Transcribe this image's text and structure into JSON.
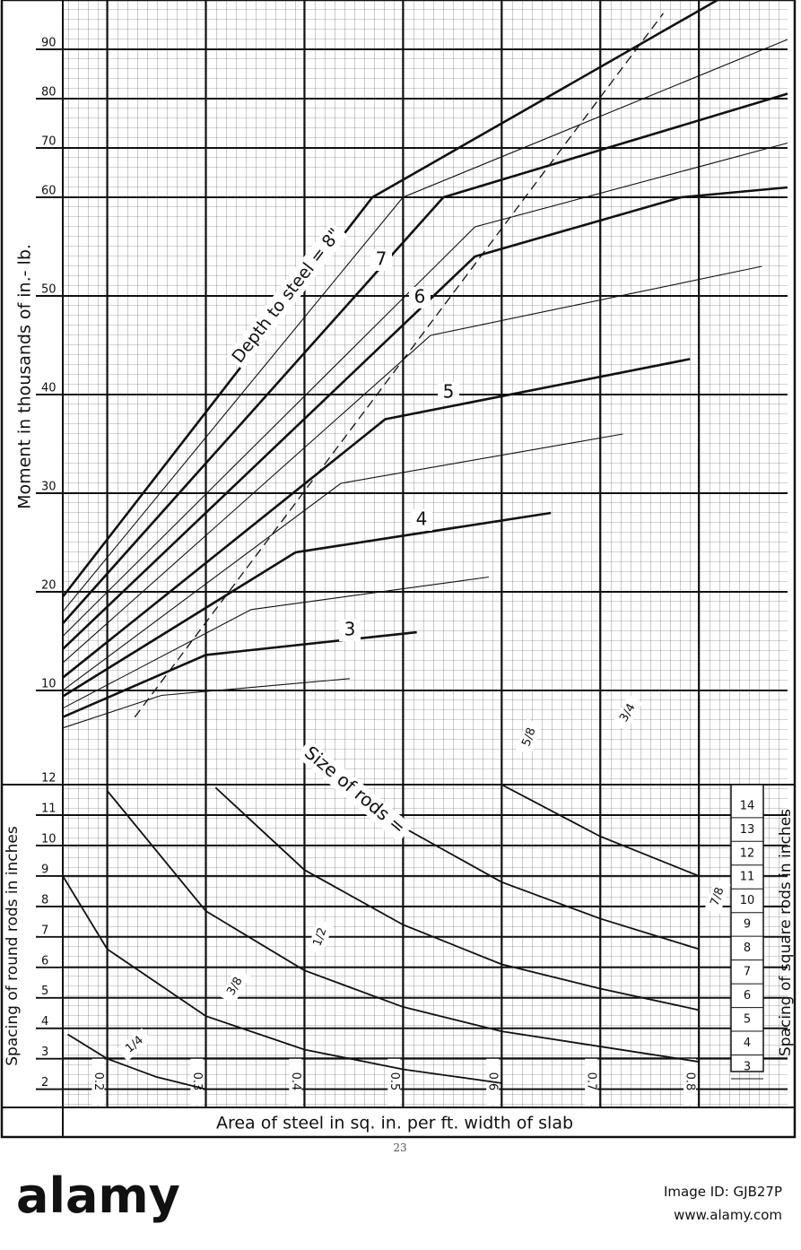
{
  "page_number": "23",
  "x_axis_label": "Area of steel in sq. in. per ft. width of slab",
  "watermark": {
    "brand": "alamy",
    "image_id": "Image ID: GJB27P",
    "url": "www.alamy.com"
  },
  "chart_data": [
    {
      "type": "line",
      "y_label": "Moment in thousands of in.- lb.",
      "xlim": [
        0.155,
        0.89
      ],
      "xticks": [
        0.2,
        0.3,
        0.4,
        0.5,
        0.6,
        0.7,
        0.8
      ],
      "ylim": [
        0.9,
        100
      ],
      "yticks": [
        10,
        20,
        30,
        40,
        50,
        60,
        70,
        80,
        90
      ],
      "grid": true,
      "series": [
        {
          "name": "Depth to steel = 8\"",
          "style": "bold",
          "color": "#111",
          "x": [
            0.155,
            0.469,
            0.819
          ],
          "values": [
            19.5,
            60,
            100
          ]
        },
        {
          "style": "thin",
          "color": "#111",
          "x": [
            0.155,
            0.5,
            0.89
          ],
          "values": [
            18,
            60,
            92
          ]
        },
        {
          "name": "7",
          "style": "bold",
          "color": "#111",
          "x": [
            0.155,
            0.541,
            0.89
          ],
          "values": [
            16.8,
            60,
            81
          ]
        },
        {
          "style": "thin",
          "color": "#111",
          "x": [
            0.155,
            0.573,
            0.89
          ],
          "values": [
            15.5,
            57,
            71
          ]
        },
        {
          "name": "6",
          "style": "bold",
          "color": "#111",
          "x": [
            0.155,
            0.573,
            0.782,
            0.89
          ],
          "values": [
            14.2,
            54,
            60,
            62
          ]
        },
        {
          "style": "thin",
          "color": "#111",
          "x": [
            0.155,
            0.528,
            0.864
          ],
          "values": [
            12.8,
            46,
            53
          ]
        },
        {
          "name": "5",
          "style": "bold",
          "color": "#111",
          "x": [
            0.155,
            0.482,
            0.791
          ],
          "values": [
            11.3,
            37.5,
            43.6
          ]
        },
        {
          "style": "thin",
          "color": "#111",
          "x": [
            0.155,
            0.437,
            0.723
          ],
          "values": [
            10,
            31,
            36
          ]
        },
        {
          "name": "4",
          "style": "bold",
          "color": "#111",
          "x": [
            0.155,
            0.391,
            0.65
          ],
          "values": [
            9.4,
            24,
            28
          ]
        },
        {
          "style": "thin",
          "color": "#111",
          "x": [
            0.155,
            0.346,
            0.587
          ],
          "values": [
            8.2,
            18.2,
            21.5
          ]
        },
        {
          "name": "3",
          "style": "bold",
          "color": "#111",
          "x": [
            0.155,
            0.3,
            0.514
          ],
          "values": [
            7.3,
            13.6,
            15.9
          ]
        },
        {
          "style": "thin",
          "color": "#111",
          "x": [
            0.155,
            0.255,
            0.446
          ],
          "values": [
            6.2,
            9.5,
            11.2
          ]
        },
        {
          "style": "dashed",
          "color": "#111",
          "x": [
            0.228,
            0.764
          ],
          "values": [
            7.3,
            97.3
          ]
        }
      ]
    },
    {
      "type": "line",
      "y_label": "Spacing of round rods in inches",
      "y2_label": "Spacing of square rods in inches",
      "curve_label": "Size of rods =",
      "xlim": [
        0.155,
        0.89
      ],
      "xticks": [
        0.2,
        0.3,
        0.4,
        0.5,
        0.6,
        0.7,
        0.8
      ],
      "ylim": [
        1.4,
        12
      ],
      "yticks": [
        2,
        3,
        4,
        5,
        6,
        7,
        8,
        9,
        10,
        11,
        12
      ],
      "y2lim": [
        1.3,
        14.9
      ],
      "y2ticks": [
        3,
        4,
        5,
        6,
        7,
        8,
        9,
        10,
        11,
        12,
        13,
        14
      ],
      "grid": true,
      "series": [
        {
          "name": "1/4",
          "color": "#111",
          "x": [
            0.16,
            0.2,
            0.25,
            0.3
          ],
          "values": [
            3.8,
            3.0,
            2.4,
            2.0
          ]
        },
        {
          "name": "3/8",
          "color": "#111",
          "x": [
            0.155,
            0.2,
            0.3,
            0.4,
            0.5,
            0.6
          ],
          "values": [
            9,
            6.6,
            4.4,
            3.3,
            2.65,
            2.2
          ]
        },
        {
          "name": "1/2",
          "color": "#111",
          "x": [
            0.2,
            0.3,
            0.4,
            0.5,
            0.6,
            0.7,
            0.8
          ],
          "values": [
            11.8,
            7.85,
            5.9,
            4.7,
            3.9,
            3.4,
            2.9
          ]
        },
        {
          "name": "5/8",
          "color": "#111",
          "x": [
            0.31,
            0.4,
            0.5,
            0.6,
            0.7,
            0.8
          ],
          "values": [
            11.9,
            9.2,
            7.4,
            6.1,
            5.3,
            4.6
          ]
        },
        {
          "name": "3/4",
          "color": "#111",
          "x": [
            0.45,
            0.5,
            0.6,
            0.7,
            0.8
          ],
          "values": [
            11.8,
            10.6,
            8.8,
            7.6,
            6.6
          ]
        },
        {
          "name": "7/8",
          "color": "#111",
          "x": [
            0.6,
            0.7,
            0.8
          ],
          "values": [
            12,
            10.3,
            9
          ]
        }
      ]
    }
  ]
}
